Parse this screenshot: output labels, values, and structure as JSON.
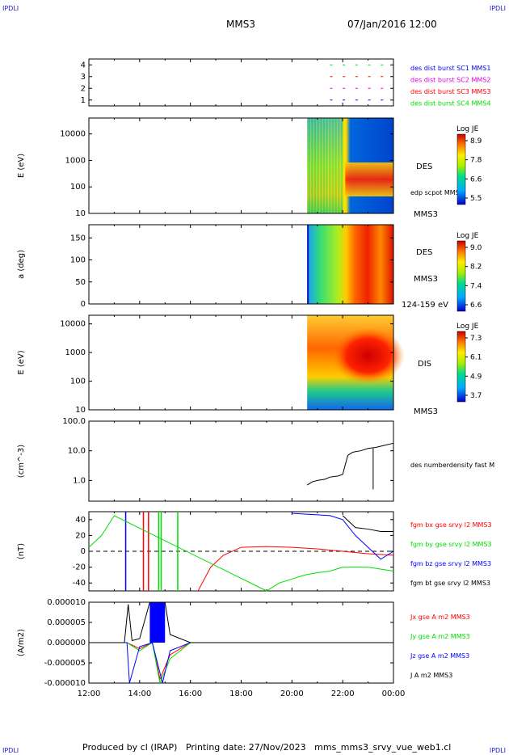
{
  "header": {
    "corner_left": "IPDLI",
    "corner_right": "IPDLI",
    "spacecraft": "MMS3",
    "datetime": "07/Jan/2016 12:00",
    "corner_bottom_left": "IPDLI",
    "corner_bottom_right": "IPDLI"
  },
  "footer": {
    "text": "Produced by cl (IRAP)   Printing date: 27/Nov/2023   mms_mms3_srvy_vue_web1.cl"
  },
  "colors": {
    "red": "#ff0000",
    "green": "#00dd00",
    "blue": "#0000ff",
    "black": "#000000",
    "magenta": "#dd00dd"
  },
  "chart_data": [
    {
      "type": "scatter",
      "name": "burst-availability",
      "yticks": [
        "1",
        "2",
        "3",
        "4"
      ],
      "ylim": [
        0.5,
        4.5
      ],
      "xlim": [
        0,
        12
      ],
      "legend": [
        {
          "label": "des dist burst SC1 MMS1",
          "color": "#0000ff"
        },
        {
          "label": "des dist burst SC2 MMS2",
          "color": "#dd00dd"
        },
        {
          "label": "des dist burst SC3 MMS3",
          "color": "#ff0000"
        },
        {
          "label": "des dist burst SC4 MMS4",
          "color": "#00dd00"
        }
      ],
      "series": [
        {
          "y": 4,
          "color": "#00dd00",
          "x": [
            9.5,
            10.0,
            10.5,
            11.0,
            11.5
          ]
        },
        {
          "y": 3,
          "color": "#ff0000",
          "x": [
            9.5,
            10.0,
            10.5,
            11.0,
            11.5
          ]
        },
        {
          "y": 2,
          "color": "#dd00dd",
          "x": [
            9.5,
            10.0,
            10.5,
            11.0,
            11.5
          ]
        },
        {
          "y": 1,
          "color": "#0000ff",
          "x": [
            9.5,
            10.0,
            10.5,
            11.0,
            11.5
          ]
        }
      ]
    },
    {
      "type": "heatmap",
      "name": "des-energy-spectrogram",
      "ylabel": "E (eV)",
      "yticks": [
        "10",
        "100",
        "1000",
        "10000"
      ],
      "data_start_hour": 8.6,
      "side_labels": [
        "DES",
        "edp scpot MMS3",
        "MMS3"
      ],
      "colorbar": {
        "title": "Log JE",
        "ticks": [
          "8.9",
          "7.8",
          "6.6",
          "5.5"
        ]
      }
    },
    {
      "type": "heatmap",
      "name": "des-pitch-angle",
      "ylabel": "a (deg)",
      "yticks": [
        "0",
        "50",
        "100",
        "150"
      ],
      "data_start_hour": 8.6,
      "side_labels": [
        "DES",
        "MMS3",
        "124-159 eV"
      ],
      "colorbar": {
        "title": "Log JE",
        "ticks": [
          "9.0",
          "8.2",
          "7.4",
          "6.6"
        ]
      }
    },
    {
      "type": "heatmap",
      "name": "dis-energy-spectrogram",
      "ylabel": "E (eV)",
      "yticks": [
        "10",
        "100",
        "1000",
        "10000"
      ],
      "data_start_hour": 8.6,
      "side_labels": [
        "DIS",
        "MMS3"
      ],
      "colorbar": {
        "title": "Log JE",
        "ticks": [
          "7.3",
          "6.1",
          "4.9",
          "3.7"
        ]
      }
    },
    {
      "type": "line",
      "name": "density",
      "ylabel": "(cm^-3)",
      "yticks": [
        "1.0",
        "10.0",
        "100.0"
      ],
      "ylim": [
        0.2,
        100
      ],
      "series": [
        {
          "name": "des numberdensity fast M",
          "color": "#000000",
          "x": [
            8.6,
            8.8,
            9.0,
            9.3,
            9.5,
            9.8,
            10.0,
            10.2,
            10.4,
            10.7,
            11.0,
            11.3,
            11.6,
            12.0
          ],
          "y": [
            0.7,
            0.9,
            1.0,
            1.1,
            1.3,
            1.4,
            1.6,
            7.0,
            9.0,
            10.0,
            12.0,
            13.0,
            15.0,
            18.0
          ]
        }
      ]
    },
    {
      "type": "line",
      "name": "magnetic-field",
      "ylabel": "(nT)",
      "yticks": [
        "-40",
        "-20",
        "0",
        "20",
        "40"
      ],
      "ylim": [
        -50,
        50
      ],
      "series": [
        {
          "name": "fgm bx gse srvy l2 MMS3",
          "color": "#ff0000",
          "x": [
            4.3,
            4.8,
            5.3,
            6.0,
            7.0,
            8.0,
            9.0,
            10.0,
            11.0,
            12.0
          ],
          "y": [
            -50,
            -20,
            -5,
            5,
            6,
            5,
            3,
            0,
            -3,
            -5
          ]
        },
        {
          "name": "fgm by gse srvy l2 MMS3",
          "color": "#00dd00",
          "x": [
            0.0,
            0.5,
            1.0,
            7.0,
            7.5,
            8.0,
            8.5,
            9.0,
            9.5,
            10.0,
            11.0,
            12.0
          ],
          "y": [
            5,
            20,
            45,
            -50,
            -40,
            -35,
            -30,
            -27,
            -25,
            -20,
            -20,
            -25
          ]
        },
        {
          "name": "fgm bz gse srvy l2 MMS3",
          "color": "#0000ff",
          "x": [
            8.0,
            8.5,
            9.0,
            9.5,
            10.0,
            10.5,
            11.0,
            11.5,
            12.0
          ],
          "y": [
            48,
            47,
            46,
            45,
            40,
            20,
            5,
            -10,
            0
          ]
        },
        {
          "name": "fgm bt gse srvy l2 MMS3",
          "color": "#000000",
          "x": [
            10.0,
            10.5,
            11.0,
            11.5,
            12.0
          ],
          "y": [
            45,
            30,
            28,
            25,
            25
          ]
        }
      ]
    },
    {
      "type": "line",
      "name": "current-density",
      "ylabel": "(A/m2)",
      "yticks": [
        "-0.000010",
        "-0.000005",
        "0.000000",
        "0.000005",
        "0.000010"
      ],
      "ylim": [
        -1e-05,
        1e-05
      ],
      "xticks": [
        "12:00",
        "14:00",
        "16:00",
        "18:00",
        "20:00",
        "22:00",
        "00:00"
      ],
      "series": [
        {
          "name": "Jx gse A m2 MMS3",
          "color": "#ff0000",
          "x": [
            0,
            1.5,
            2.0,
            2.5,
            2.8,
            3.2,
            4.0,
            12.0
          ],
          "y": [
            0,
            0,
            -1.5e-06,
            0,
            -9e-06,
            -3e-06,
            0,
            0
          ]
        },
        {
          "name": "Jy gse A m2 MMS3",
          "color": "#00dd00",
          "x": [
            0,
            1.5,
            2.0,
            2.5,
            2.8,
            3.2,
            4.0,
            12.0
          ],
          "y": [
            0,
            0,
            -2e-06,
            0,
            -1e-05,
            -4e-06,
            0,
            0
          ]
        },
        {
          "name": "Jz gse A m2 MMS3",
          "color": "#0000ff",
          "x": [
            0,
            1.5,
            1.6,
            2.0,
            2.5,
            2.9,
            3.2,
            4.0,
            12.0
          ],
          "y": [
            0,
            0,
            -1e-05,
            -1e-06,
            0,
            -1e-05,
            -2e-06,
            0,
            0
          ]
        },
        {
          "name": "J A m2 MMS3",
          "color": "#000000",
          "x": [
            0,
            1.4,
            1.55,
            1.7,
            2.0,
            2.4,
            2.7,
            3.0,
            3.2,
            4.0,
            12.0
          ],
          "y": [
            0,
            0,
            9.5e-06,
            5e-07,
            1e-06,
            1e-05,
            1e-05,
            1e-05,
            2e-06,
            0,
            0
          ]
        }
      ]
    }
  ]
}
